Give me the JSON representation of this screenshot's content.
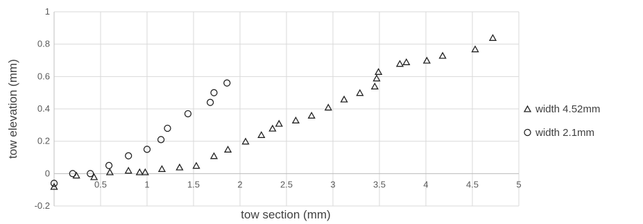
{
  "chart_data": {
    "type": "scatter",
    "title": "",
    "xlabel": "tow section (mm)",
    "ylabel": "tow elevation (mm)",
    "xlim": [
      0,
      5
    ],
    "ylim": [
      -0.2,
      1
    ],
    "x_ticks": [
      "0.5",
      "1",
      "1.5",
      "2",
      "2.5",
      "3",
      "3.5",
      "4",
      "4.5",
      "5"
    ],
    "y_ticks": [
      "1",
      "0.8",
      "0.6",
      "0.4",
      "0.2",
      "0",
      "-0.2"
    ],
    "grid": true,
    "legend_position": "right",
    "series": [
      {
        "name": "width 4.52mm",
        "marker": "triangle",
        "color": "#222222",
        "x": [
          0.0,
          0.24,
          0.43,
          0.6,
          0.8,
          0.92,
          0.98,
          1.16,
          1.35,
          1.53,
          1.72,
          1.87,
          2.06,
          2.23,
          2.35,
          2.42,
          2.6,
          2.77,
          2.95,
          3.12,
          3.29,
          3.45,
          3.47,
          3.49,
          3.72,
          3.79,
          4.01,
          4.18,
          4.53,
          4.72
        ],
        "y": [
          -0.08,
          -0.01,
          -0.02,
          0.01,
          0.02,
          0.01,
          0.01,
          0.03,
          0.04,
          0.05,
          0.11,
          0.15,
          0.2,
          0.24,
          0.28,
          0.31,
          0.33,
          0.36,
          0.41,
          0.46,
          0.5,
          0.54,
          0.59,
          0.63,
          0.68,
          0.69,
          0.7,
          0.73,
          0.77,
          0.84
        ]
      },
      {
        "name": "width 2.1mm",
        "marker": "circle",
        "color": "#222222",
        "x": [
          0.0,
          0.2,
          0.39,
          0.59,
          0.8,
          1.0,
          1.15,
          1.22,
          1.44,
          1.68,
          1.72,
          1.86
        ],
        "y": [
          -0.06,
          0.0,
          0.0,
          0.05,
          0.11,
          0.15,
          0.21,
          0.28,
          0.37,
          0.44,
          0.5,
          0.56
        ]
      }
    ]
  }
}
